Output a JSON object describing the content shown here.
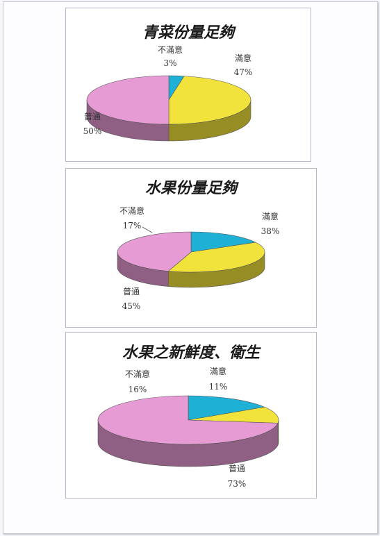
{
  "colors": {
    "satisfied": "#f2e33c",
    "normal": "#e79bd4",
    "dissatisfied": "#1fb0d6"
  },
  "chart_data": [
    {
      "type": "pie",
      "title": "青菜份量足夠",
      "slices": [
        {
          "label": "滿意",
          "value": 47,
          "pct": "47%"
        },
        {
          "label": "普通",
          "value": 50,
          "pct": "50%"
        },
        {
          "label": "不滿意",
          "value": 3,
          "pct": "3%"
        }
      ]
    },
    {
      "type": "pie",
      "title": "水果份量足夠",
      "slices": [
        {
          "label": "滿意",
          "value": 38,
          "pct": "38%"
        },
        {
          "label": "普通",
          "value": 45,
          "pct": "45%"
        },
        {
          "label": "不滿意",
          "value": 17,
          "pct": "17%"
        }
      ]
    },
    {
      "type": "pie",
      "title": "水果之新鮮度、衛生",
      "slices": [
        {
          "label": "滿意",
          "value": 11,
          "pct": "11%"
        },
        {
          "label": "普通",
          "value": 73,
          "pct": "73%"
        },
        {
          "label": "不滿意",
          "value": 16,
          "pct": "16%"
        }
      ]
    }
  ]
}
